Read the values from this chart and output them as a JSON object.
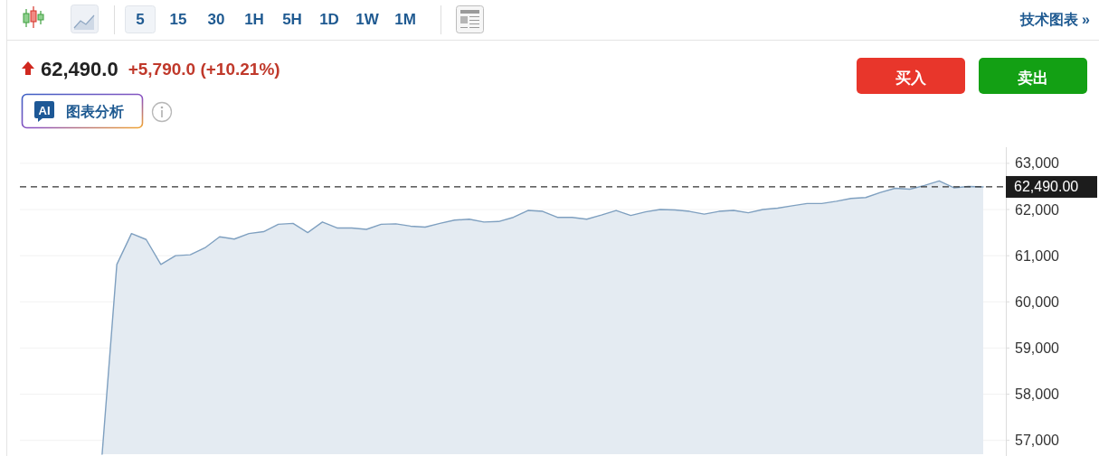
{
  "chart_data": {
    "type": "area",
    "title": "62,490.0",
    "subtitle": "+5,790.0 (+10.21%)",
    "annotations": [
      "5",
      "15",
      "30",
      "1H",
      "5H",
      "1D",
      "1W",
      "1M",
      "技术图表 »",
      "买入",
      "卖出",
      "AI",
      "图表分析"
    ],
    "categories": [
      null,
      null,
      null,
      null,
      null,
      null,
      null,
      null,
      null,
      null,
      null,
      null,
      null,
      null,
      null,
      null,
      null,
      null,
      null,
      null,
      null,
      null,
      null,
      null,
      null,
      null,
      null,
      null,
      null,
      null,
      null,
      null,
      null,
      null,
      null,
      null,
      null,
      null,
      null,
      null,
      null,
      null,
      null,
      null,
      null,
      null,
      null,
      null,
      null,
      null,
      null,
      null,
      null,
      null,
      null,
      null,
      null,
      null,
      null,
      null,
      null
    ],
    "values": [
      56700,
      60810,
      61480,
      61350,
      60810,
      61000,
      61020,
      61170,
      61410,
      61360,
      61480,
      61520,
      61680,
      61700,
      61500,
      61730,
      61600,
      61600,
      61570,
      61680,
      61690,
      61640,
      61620,
      61700,
      61770,
      61790,
      61730,
      61740,
      61830,
      61980,
      61960,
      61830,
      61830,
      61790,
      61880,
      61980,
      61870,
      61950,
      62000,
      61990,
      61960,
      61900,
      61960,
      61980,
      61930,
      62000,
      62030,
      62080,
      62130,
      62130,
      62180,
      62240,
      62260,
      62370,
      62460,
      62440,
      62520,
      62620,
      62470,
      62500,
      62490
    ],
    "color": "#7fa0c0",
    "ylim": [
      56700,
      63350
    ],
    "yticks": [
      {
        "value": 57000,
        "label": "57,000"
      },
      {
        "value": 58000,
        "label": "58,000"
      },
      {
        "value": 59000,
        "label": "59,000"
      },
      {
        "value": 60000,
        "label": "60,000"
      },
      {
        "value": 61000,
        "label": "61,000"
      },
      {
        "value": 62000,
        "label": "62,000"
      },
      {
        "value": 63000,
        "label": "63,000"
      }
    ],
    "tick_labels": "y",
    "grid": "y",
    "ref_lines": [
      {
        "axis": "y",
        "value": 62490,
        "label": "62,490.00",
        "color": "#333333",
        "line_style": "dashed"
      }
    ]
  }
}
